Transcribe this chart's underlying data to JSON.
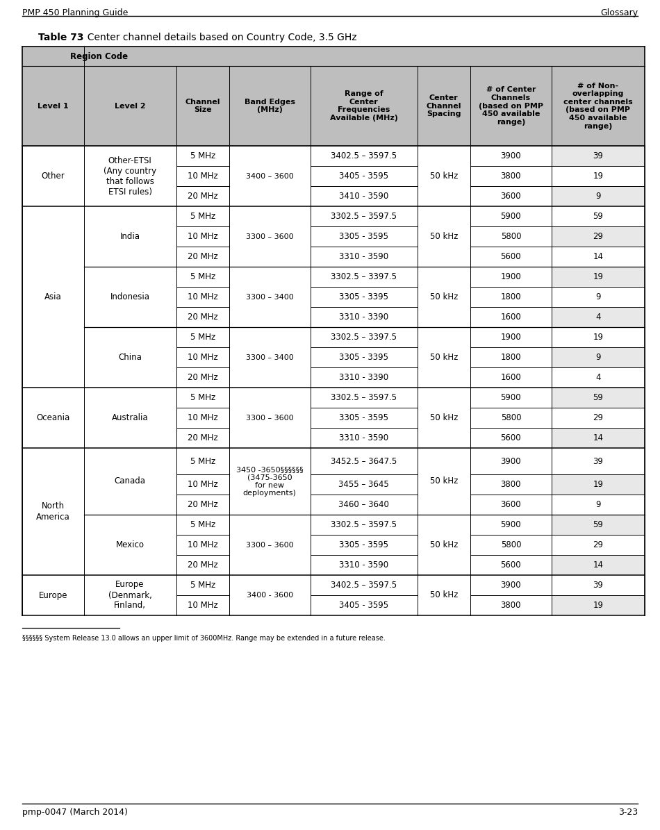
{
  "page_header_left": "PMP 450 Planning Guide",
  "page_header_right": "Glossary",
  "table_title_bold": "Table 73",
  "table_title_rest": "  Center channel details based on Country Code, 3.5 GHz",
  "col_headers": [
    "Level 1",
    "Level 2",
    "Channel\nSize",
    "Band Edges\n(MHz)",
    "Range of\nCenter\nFrequencies\nAvailable (MHz)",
    "Center\nChannel\nSpacing",
    "# of Center\nChannels\n(based on PMP\n450 available\nrange)",
    "# of Non-\noverlapping\ncenter channels\n(based on PMP\n450 available\nrange)"
  ],
  "region_code_header": "Region Code",
  "header_bg": "#BEBEBE",
  "footnote": "§§§§§§ System Release 13.0 allows an upper limit of 3600MHz. Range may be extended in a future release.",
  "footer_left": "pmp-0047 (March 2014)",
  "footer_right": "3-23",
  "groups": [
    {
      "level1": "Other",
      "level1_span": 3,
      "sub_groups": [
        {
          "level2": "Other-ETSI\n(Any country\nthat follows\nETSI rules)",
          "band_edges": "3400 – 3600",
          "spacing": "50 kHz",
          "sub_rows": [
            {
              "ch_size": "5 MHz",
              "range_cf": "3402.5 – 3597.5",
              "num_ch": "3900",
              "num_non_ol": "39"
            },
            {
              "ch_size": "10 MHz",
              "range_cf": "3405 - 3595",
              "num_ch": "3800",
              "num_non_ol": "19"
            },
            {
              "ch_size": "20 MHz",
              "range_cf": "3410 - 3590",
              "num_ch": "3600",
              "num_non_ol": "9"
            }
          ]
        }
      ]
    },
    {
      "level1": "Asia",
      "level1_span": 9,
      "sub_groups": [
        {
          "level2": "India",
          "band_edges": "3300 – 3600",
          "spacing": "50 kHz",
          "sub_rows": [
            {
              "ch_size": "5 MHz",
              "range_cf": "3302.5 – 3597.5",
              "num_ch": "5900",
              "num_non_ol": "59"
            },
            {
              "ch_size": "10 MHz",
              "range_cf": "3305 - 3595",
              "num_ch": "5800",
              "num_non_ol": "29"
            },
            {
              "ch_size": "20 MHz",
              "range_cf": "3310 - 3590",
              "num_ch": "5600",
              "num_non_ol": "14"
            }
          ]
        },
        {
          "level2": "Indonesia",
          "band_edges": "3300 – 3400",
          "spacing": "50 kHz",
          "sub_rows": [
            {
              "ch_size": "5 MHz",
              "range_cf": "3302.5 – 3397.5",
              "num_ch": "1900",
              "num_non_ol": "19"
            },
            {
              "ch_size": "10 MHz",
              "range_cf": "3305 - 3395",
              "num_ch": "1800",
              "num_non_ol": "9"
            },
            {
              "ch_size": "20 MHz",
              "range_cf": "3310 - 3390",
              "num_ch": "1600",
              "num_non_ol": "4"
            }
          ]
        },
        {
          "level2": "China",
          "band_edges": "3300 – 3400",
          "spacing": "50 kHz",
          "sub_rows": [
            {
              "ch_size": "5 MHz",
              "range_cf": "3302.5 – 3397.5",
              "num_ch": "1900",
              "num_non_ol": "19"
            },
            {
              "ch_size": "10 MHz",
              "range_cf": "3305 - 3395",
              "num_ch": "1800",
              "num_non_ol": "9"
            },
            {
              "ch_size": "20 MHz",
              "range_cf": "3310 - 3390",
              "num_ch": "1600",
              "num_non_ol": "4"
            }
          ]
        }
      ]
    },
    {
      "level1": "Oceania",
      "level1_span": 3,
      "sub_groups": [
        {
          "level2": "Australia",
          "band_edges": "3300 – 3600",
          "spacing": "50 kHz",
          "sub_rows": [
            {
              "ch_size": "5 MHz",
              "range_cf": "3302.5 – 3597.5",
              "num_ch": "5900",
              "num_non_ol": "59"
            },
            {
              "ch_size": "10 MHz",
              "range_cf": "3305 - 3595",
              "num_ch": "5800",
              "num_non_ol": "29"
            },
            {
              "ch_size": "20 MHz",
              "range_cf": "3310 - 3590",
              "num_ch": "5600",
              "num_non_ol": "14"
            }
          ]
        }
      ]
    },
    {
      "level1": "North\nAmerica",
      "level1_span": 6,
      "sub_groups": [
        {
          "level2": "Canada",
          "band_edges": "3450 -3650§§§§§§\n(3475-3650\nfor new\ndeployments)",
          "spacing": "50 kHz",
          "sub_rows": [
            {
              "ch_size": "5 MHz",
              "range_cf": "3452.5 – 3647.5",
              "num_ch": "3900",
              "num_non_ol": "39"
            },
            {
              "ch_size": "10 MHz",
              "range_cf": "3455 – 3645",
              "num_ch": "3800",
              "num_non_ol": "19"
            },
            {
              "ch_size": "20 MHz",
              "range_cf": "3460 – 3640",
              "num_ch": "3600",
              "num_non_ol": "9"
            }
          ]
        },
        {
          "level2": "Mexico",
          "band_edges": "3300 – 3600",
          "spacing": "50 kHz",
          "sub_rows": [
            {
              "ch_size": "5 MHz",
              "range_cf": "3302.5 – 3597.5",
              "num_ch": "5900",
              "num_non_ol": "59"
            },
            {
              "ch_size": "10 MHz",
              "range_cf": "3305 - 3595",
              "num_ch": "5800",
              "num_non_ol": "29"
            },
            {
              "ch_size": "20 MHz",
              "range_cf": "3310 - 3590",
              "num_ch": "5600",
              "num_non_ol": "14"
            }
          ]
        }
      ]
    },
    {
      "level1": "Europe",
      "level1_span": 2,
      "sub_groups": [
        {
          "level2": "Europe\n(Denmark,\nFinland,",
          "band_edges": "3400 - 3600",
          "spacing": "50 kHz",
          "sub_rows": [
            {
              "ch_size": "5 MHz",
              "range_cf": "3402.5 – 3597.5",
              "num_ch": "3900",
              "num_non_ol": "39"
            },
            {
              "ch_size": "10 MHz",
              "range_cf": "3405 - 3595",
              "num_ch": "3800",
              "num_non_ol": "19"
            }
          ]
        }
      ]
    }
  ]
}
